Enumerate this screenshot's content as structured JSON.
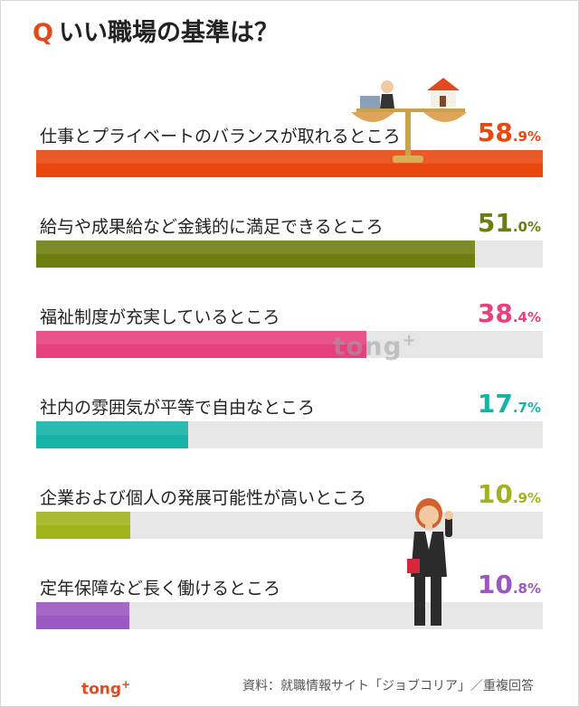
{
  "title": {
    "q": "Q",
    "text": "いい職場の基準は？"
  },
  "chart_data": {
    "type": "bar",
    "title": "いい職場の基準は？",
    "categories": [
      "仕事とプライベートのバランスが取れるところ",
      "給与や成果給など金銭的に満足できるところ",
      "福祉制度が充実しているところ",
      "社内の雰囲気が平等で自由なところ",
      "企業および個人の発展可能性が高いところ",
      "定年保障など長く働けるところ"
    ],
    "values": [
      58.9,
      51.0,
      38.4,
      17.7,
      10.9,
      10.8
    ],
    "display": [
      {
        "main": "58",
        "dec": ".9%"
      },
      {
        "main": "51",
        "dec": ".0%"
      },
      {
        "main": "38",
        "dec": ".4%"
      },
      {
        "main": "17",
        "dec": ".7%"
      },
      {
        "main": "10",
        "dec": ".9%"
      },
      {
        "main": "10",
        "dec": ".8%"
      }
    ],
    "colors": [
      "#e9470e",
      "#6e7d0f",
      "#e6407f",
      "#14b3a8",
      "#a2b21c",
      "#9a58c0"
    ],
    "xlim": [
      0,
      58.9
    ]
  },
  "watermark": {
    "text": "tong",
    "sup": "+"
  },
  "logo": {
    "text": "tong",
    "sup": "+"
  },
  "footer": {
    "source": "資料：就職情報サイト「ジョブコリア」／重複回答"
  }
}
